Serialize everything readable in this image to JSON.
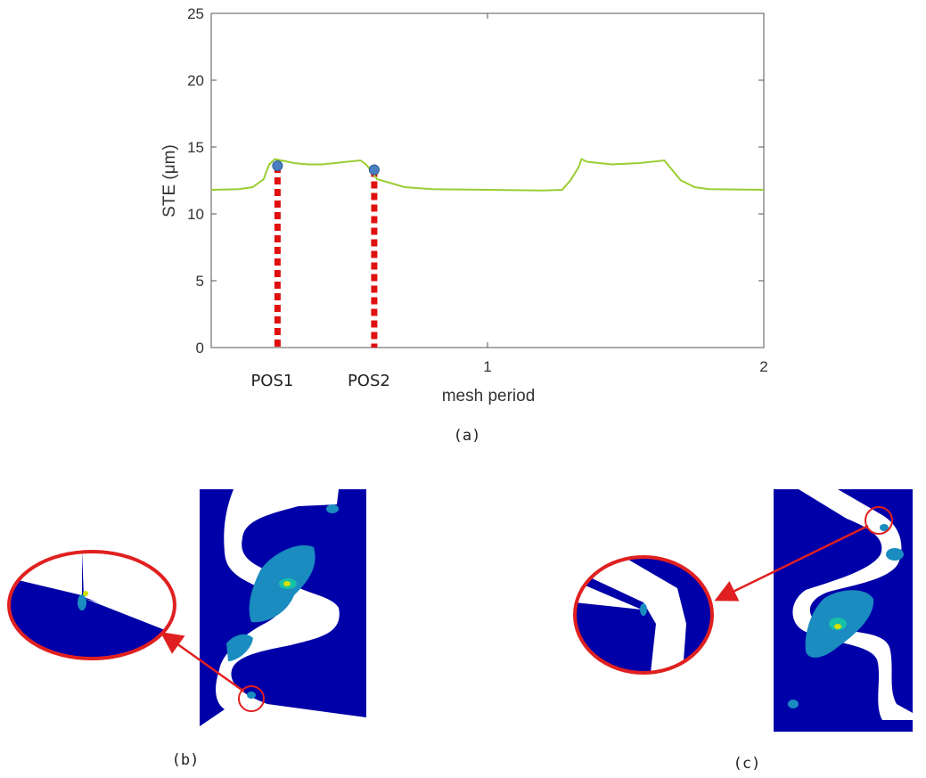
{
  "chart_data": {
    "type": "line",
    "xlabel": "mesh period",
    "ylabel": "STE (μm)",
    "xlim": [
      0,
      2
    ],
    "ylim": [
      0,
      25
    ],
    "xticks": [
      "1",
      "2"
    ],
    "yticks": [
      "0",
      "5",
      "10",
      "15",
      "20",
      "25"
    ],
    "series": [
      {
        "color": "#9acd32",
        "x": [
          0,
          0.1,
          0.15,
          0.19,
          0.2,
          0.21,
          0.23,
          0.3,
          0.35,
          0.4,
          0.54,
          0.56,
          0.58,
          0.6,
          0.7,
          0.8,
          1.0,
          1.2,
          1.27,
          1.3,
          1.33,
          1.34,
          1.36,
          1.45,
          1.55,
          1.64,
          1.66,
          1.68,
          1.7,
          1.75,
          1.8,
          2.0
        ],
        "y": [
          11.8,
          11.85,
          12.0,
          12.6,
          13.2,
          13.7,
          14.1,
          13.8,
          13.7,
          13.7,
          14.0,
          13.7,
          13.2,
          12.6,
          12.0,
          11.85,
          11.8,
          11.75,
          11.8,
          12.5,
          13.5,
          14.1,
          13.9,
          13.7,
          13.8,
          14.0,
          13.5,
          13.0,
          12.5,
          12.0,
          11.85,
          11.8
        ]
      }
    ],
    "markers": [
      {
        "label": "POS1",
        "x": 0.24,
        "y": 13.6
      },
      {
        "label": "POS2",
        "x": 0.59,
        "y": 13.3
      }
    ]
  },
  "captions": {
    "a": "(a)",
    "b": "(b)",
    "c": "(c)"
  },
  "colors": {
    "line": "#9acd32",
    "marker": "#4a7fc0",
    "dashed": "#e01010",
    "highlight": "#e02020",
    "stress_background": "#0000a8",
    "stress_mid": "#1a8cc0",
    "stress_high": "#d4e000"
  }
}
